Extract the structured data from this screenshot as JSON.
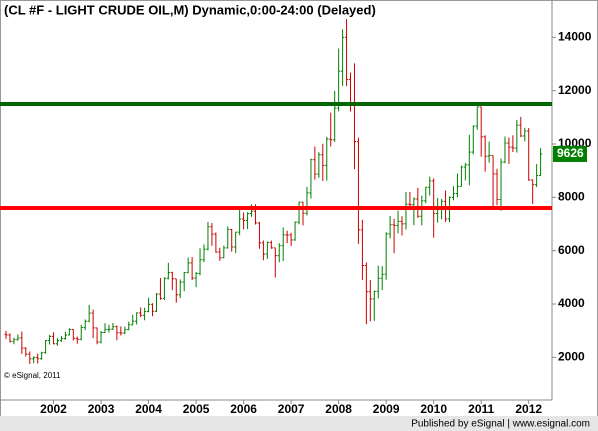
{
  "chart_data": {
    "type": "ohlc",
    "title": "(CL #F - LIGHT CRUDE OIL,M) Dynamic,0:00-24:00 (Delayed)",
    "annotation": "© eSignal, 2011",
    "categories": [
      null,
      null,
      null,
      null,
      null,
      null,
      null,
      null,
      null,
      null,
      null,
      null,
      "2002",
      null,
      null,
      null,
      null,
      null,
      null,
      null,
      null,
      null,
      null,
      null,
      "2003",
      null,
      null,
      null,
      null,
      null,
      null,
      null,
      null,
      null,
      null,
      null,
      "2004",
      null,
      null,
      null,
      null,
      null,
      null,
      null,
      null,
      null,
      null,
      null,
      "2005",
      null,
      null,
      null,
      null,
      null,
      null,
      null,
      null,
      null,
      null,
      null,
      "2006",
      null,
      null,
      null,
      null,
      null,
      null,
      null,
      null,
      null,
      null,
      null,
      "2007",
      null,
      null,
      null,
      null,
      null,
      null,
      null,
      null,
      null,
      null,
      null,
      "2008",
      null,
      null,
      null,
      null,
      null,
      null,
      null,
      null,
      null,
      null,
      null,
      "2009",
      null,
      null,
      null,
      null,
      null,
      null,
      null,
      null,
      null,
      null,
      null,
      "2010",
      null,
      null,
      null,
      null,
      null,
      null,
      null,
      null,
      null,
      null,
      null,
      "2011",
      null,
      null,
      null,
      null,
      null,
      null,
      null,
      null,
      null,
      null,
      null,
      "2012",
      null,
      null,
      null
    ],
    "open": [
      2866,
      2837,
      2600,
      2671,
      2728,
      2345,
      2119,
      1944,
      1996,
      1948,
      2174,
      2631,
      2785,
      2508,
      2627,
      2705,
      2838,
      3045,
      2713,
      2674,
      3118,
      3351,
      3658,
      3104,
      2575,
      2931,
      3042,
      3054,
      3150,
      2920,
      2911,
      3041,
      3220,
      3356,
      3666,
      3576,
      3718,
      3988,
      3727,
      4374,
      4209,
      4964,
      5176,
      4946,
      4345,
      4820,
      5178,
      5540,
      4972,
      5145,
      5658,
      6057,
      6897,
      6620,
      5949,
      5732,
      6104,
      6792,
      6137,
      6693,
      7188,
      7129,
      7393,
      7481,
      7038,
      6291,
      5873,
      6308,
      6105,
      5814,
      6187,
      6593,
      6587,
      6402,
      7068,
      7821,
      7404,
      8166,
      9413,
      8871,
      9598,
      9198,
      10184,
      10158,
      11346,
      12731,
      14000,
      12421,
      11546,
      10089,
      6781,
      5443,
      4460,
      4192,
      4476,
      4966,
      5114,
      6631,
      6973,
      6945,
      7096,
      7007,
      7739,
      7728,
      7936,
      7289,
      7870,
      8376,
      8615,
      7397,
      7594,
      7851,
      7191,
      7997,
      8143,
      8411,
      9138,
      9219,
      9697,
      10672,
      11393,
      10270,
      9542,
      9570,
      8881,
      7920,
      9319,
      10036,
      9883,
      9848,
      10707,
      10302,
      10487,
      8653,
      8475,
      8820
    ],
    "high": [
      2990,
      2900,
      2740,
      2860,
      2970,
      2380,
      2220,
      2040,
      2140,
      2210,
      2650,
      2840,
      2940,
      2720,
      2800,
      2960,
      3090,
      3050,
      2780,
      3220,
      3420,
      3970,
      3790,
      3110,
      2990,
      3280,
      3220,
      3290,
      3190,
      3160,
      3150,
      3340,
      3600,
      3690,
      3870,
      3860,
      4238,
      4030,
      4410,
      4975,
      5000,
      5545,
      5210,
      4940,
      4920,
      5200,
      5740,
      5760,
      5200,
      6090,
      6230,
      7080,
      7040,
      6680,
      6110,
      6190,
      6913,
      6820,
      6710,
      7530,
      7433,
      7440,
      7740,
      7740,
      7080,
      6380,
      6340,
      6379,
      6110,
      6280,
      6870,
      6747,
      6670,
      7095,
      7840,
      7825,
      8390,
      9453,
      9907,
      9697,
      10009,
      10265,
      11172,
      11993,
      13582,
      14300,
      14727,
      12680,
      13025,
      10238,
      7158,
      5558,
      4900,
      4500,
      5440,
      5420,
      6690,
      7300,
      7200,
      7500,
      7290,
      8200,
      8200,
      8000,
      8358,
      8064,
      8392,
      8776,
      8710,
      7976,
      7940,
      8258,
      8040,
      8418,
      8890,
      9190,
      9284,
      10340,
      10700,
      11400,
      11393,
      10328,
      10088,
      9570,
      9073,
      9458,
      10280,
      10244,
      10324,
      10900,
      11018,
      10610,
      10600,
      8665,
      9245,
      9844
    ],
    "low": [
      2690,
      2550,
      2490,
      2620,
      2130,
      2030,
      1750,
      1780,
      1770,
      1910,
      2140,
      2480,
      2490,
      2440,
      2580,
      2660,
      2820,
      2630,
      2510,
      2640,
      3020,
      3320,
      2720,
      2490,
      2520,
      2920,
      2930,
      3030,
      2640,
      2820,
      2870,
      3020,
      3200,
      3230,
      3510,
      3390,
      3690,
      3540,
      3700,
      4160,
      4150,
      4920,
      4520,
      4050,
      4220,
      4480,
      5150,
      4900,
      4630,
      5080,
      5570,
      6010,
      6180,
      5920,
      5620,
      5720,
      6080,
      5960,
      5910,
      6580,
      6800,
      6810,
      7270,
      6980,
      6070,
      5639,
      5690,
      6070,
      4995,
      5560,
      5610,
      6280,
      6180,
      6370,
      6990,
      6950,
      7320,
      7957,
      8664,
      8733,
      8611,
      8628,
      9907,
      10080,
      11220,
      12180,
      12171,
      11213,
      9056,
      6257,
      4901,
      3240,
      3350,
      3370,
      4210,
      4520,
      4910,
      6460,
      5905,
      6650,
      6570,
      6790,
      7520,
      6959,
      7228,
      6950,
      7779,
      8066,
      6486,
      7048,
      7176,
      7076,
      7070,
      7890,
      8000,
      8400,
      8635,
      8446,
      9612,
      10536,
      9525,
      8961,
      9302,
      7564,
      7707,
      7495,
      9280,
      9253,
      9700,
      9680,
      10262,
      10100,
      8621,
      7745,
      8385,
      8810
    ],
    "close": [
      2837,
      2600,
      2671,
      2728,
      2345,
      2119,
      1944,
      1996,
      1948,
      2174,
      2631,
      2785,
      2508,
      2627,
      2705,
      2838,
      3045,
      2713,
      2674,
      3118,
      3351,
      3658,
      3104,
      2575,
      2931,
      3042,
      3054,
      3150,
      2920,
      2911,
      3041,
      3220,
      3356,
      3666,
      3576,
      3718,
      3988,
      3727,
      4374,
      4209,
      4964,
      5176,
      4946,
      4345,
      4820,
      5178,
      5540,
      4972,
      5145,
      5658,
      6057,
      6897,
      6620,
      5949,
      5732,
      6104,
      6792,
      6137,
      6693,
      7188,
      7129,
      7393,
      7481,
      7038,
      6291,
      5873,
      6308,
      6105,
      5814,
      6187,
      6593,
      6587,
      6402,
      7068,
      7821,
      7404,
      8166,
      9413,
      8871,
      9598,
      9198,
      10184,
      10158,
      11346,
      12731,
      14000,
      12421,
      11546,
      10089,
      6781,
      5443,
      4460,
      4192,
      4476,
      4966,
      5114,
      6631,
      6973,
      6945,
      7096,
      7007,
      7739,
      7728,
      7936,
      7289,
      7870,
      8376,
      8615,
      7397,
      7594,
      7851,
      7191,
      7997,
      8143,
      8411,
      9138,
      9219,
      9697,
      10672,
      11393,
      10270,
      9542,
      9570,
      8881,
      7920,
      9319,
      10036,
      9883,
      9848,
      10707,
      10302,
      10487,
      8653,
      8475,
      8820,
      9626
    ],
    "up_color": "#008000",
    "down_color": "#cc0000",
    "hlines": [
      {
        "value": 11500,
        "color": "#006400"
      },
      {
        "value": 7600,
        "color": "#ff0000"
      }
    ],
    "last_color": "#008000",
    "ylim": [
      400,
      15400
    ],
    "yticks": [
      2000,
      4000,
      6000,
      8000,
      10000,
      12000,
      14000
    ]
  },
  "footer": "Published by eSignal | www.esignal.com"
}
